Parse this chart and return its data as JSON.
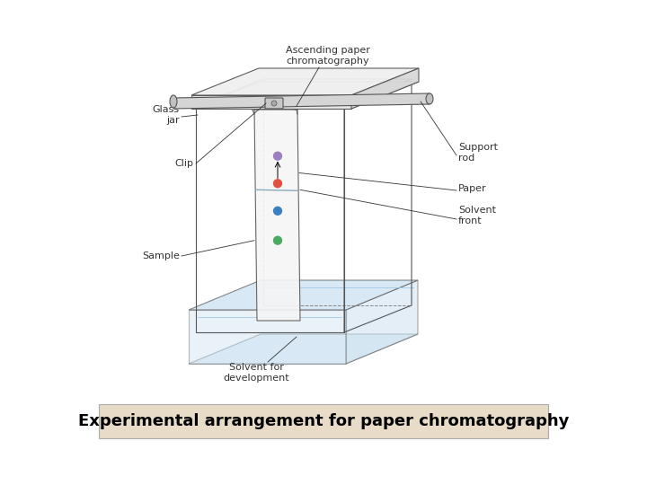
{
  "title": "Experimental arrangement for paper chromatography",
  "title_fontsize": 13,
  "title_bg": "#e8dcc8",
  "bg_color": "#ffffff",
  "labels": {
    "ascending": "Ascending paper\nchromatography",
    "glass_jar": "Glass\njar",
    "clip": "Clip",
    "support_rod": "Support\nrod",
    "paper": "Paper",
    "solvent_front": "Solvent\nfront",
    "sample": "Sample",
    "solvent_dev": "Solvent for\ndevelopment"
  },
  "dot_colors": [
    "#9b7fc0",
    "#e05040",
    "#3a80c0",
    "#4aaa60"
  ],
  "solvent_color": "#c8dff0",
  "tray_color": "#c8dff0",
  "line_color": "#555555",
  "dashed_color": "#888888",
  "label_fontsize": 8,
  "label_color": "#333333"
}
